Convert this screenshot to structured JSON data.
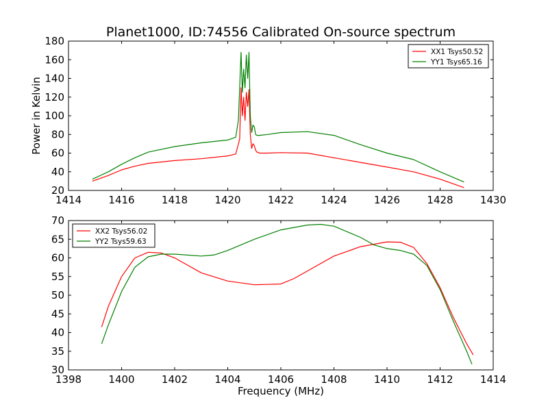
{
  "title": "Planet1000, ID:74556 Calibrated On-source spectrum",
  "chart_data": [
    {
      "type": "line",
      "ylabel": "Power in Kelvin",
      "xlim": [
        1414,
        1430
      ],
      "ylim": [
        20,
        180
      ],
      "xticks": [
        1414,
        1416,
        1418,
        1420,
        1422,
        1424,
        1426,
        1428,
        1430
      ],
      "yticks": [
        20,
        40,
        60,
        80,
        100,
        120,
        140,
        160,
        180
      ],
      "legend_position": "top-right",
      "series": [
        {
          "name": "XX1 Tsys50.52",
          "color": "#ff0000",
          "x": [
            1414.9,
            1415.5,
            1416.0,
            1416.5,
            1417.0,
            1418.0,
            1419.0,
            1420.0,
            1420.3,
            1420.45,
            1420.5,
            1420.55,
            1420.6,
            1420.65,
            1420.7,
            1420.75,
            1420.8,
            1420.85,
            1420.9,
            1420.95,
            1421.0,
            1421.05,
            1421.1,
            1421.2,
            1421.5,
            1422.0,
            1423.0,
            1424.0,
            1425.0,
            1426.0,
            1427.0,
            1428.0,
            1428.9
          ],
          "y": [
            30,
            36,
            42,
            46,
            49,
            52,
            54,
            57,
            59,
            75,
            130,
            100,
            120,
            95,
            125,
            110,
            128,
            80,
            65,
            70,
            68,
            63,
            61,
            60,
            60,
            60.5,
            60,
            55,
            50,
            45,
            40,
            32,
            23
          ]
        },
        {
          "name": "YY1 Tsys65.16",
          "color": "#008000",
          "x": [
            1414.9,
            1415.5,
            1416.0,
            1416.5,
            1417.0,
            1418.0,
            1419.0,
            1420.0,
            1420.3,
            1420.4,
            1420.5,
            1420.55,
            1420.6,
            1420.65,
            1420.7,
            1420.75,
            1420.8,
            1420.85,
            1420.9,
            1420.95,
            1421.0,
            1421.05,
            1421.1,
            1421.2,
            1421.5,
            1422.0,
            1423.0,
            1424.0,
            1425.0,
            1426.0,
            1427.0,
            1428.0,
            1428.9
          ],
          "y": [
            32,
            40,
            48,
            55,
            61,
            67,
            71,
            74,
            77,
            95,
            168,
            125,
            150,
            130,
            165,
            140,
            168,
            100,
            82,
            90,
            88,
            80,
            79,
            79,
            80,
            82,
            83,
            79,
            69,
            60,
            53,
            40,
            29
          ]
        }
      ]
    },
    {
      "type": "line",
      "xlabel": "Frequency (MHz)",
      "xlim": [
        1398,
        1414
      ],
      "ylim": [
        30,
        70
      ],
      "xticks": [
        1398,
        1400,
        1402,
        1404,
        1406,
        1408,
        1410,
        1412,
        1414
      ],
      "yticks": [
        30,
        35,
        40,
        45,
        50,
        55,
        60,
        65,
        70
      ],
      "legend_position": "top-left",
      "series": [
        {
          "name": "XX2 Tsys56.02",
          "color": "#ff0000",
          "x": [
            1399.25,
            1399.5,
            1400.0,
            1400.5,
            1401.0,
            1401.5,
            1402.0,
            1402.5,
            1403.0,
            1404.0,
            1405.0,
            1406.0,
            1406.5,
            1407.0,
            1408.0,
            1409.0,
            1410.0,
            1410.5,
            1411.0,
            1411.5,
            1412.0,
            1412.5,
            1413.0,
            1413.25
          ],
          "y": [
            41.5,
            47,
            55,
            60,
            61.5,
            61.3,
            60,
            58,
            56,
            53.8,
            52.8,
            53,
            54.5,
            56.5,
            60.5,
            63,
            64.3,
            64.2,
            62.8,
            58.5,
            52,
            44,
            37,
            34
          ]
        },
        {
          "name": "YY2 Tsys59.63",
          "color": "#008000",
          "x": [
            1399.25,
            1399.5,
            1400.0,
            1400.5,
            1401.0,
            1401.5,
            1402.0,
            1403.0,
            1403.5,
            1404.0,
            1405.0,
            1406.0,
            1407.0,
            1407.5,
            1408.0,
            1409.0,
            1409.5,
            1410.0,
            1410.5,
            1411.0,
            1411.5,
            1412.0,
            1412.5,
            1413.0,
            1413.2
          ],
          "y": [
            37,
            42,
            51,
            57.5,
            60.3,
            61,
            61,
            60.5,
            60.8,
            62,
            65,
            67.5,
            68.8,
            69,
            68.5,
            65.5,
            63.5,
            62.5,
            62,
            61,
            58,
            51.5,
            43,
            35,
            31.5
          ]
        }
      ]
    }
  ]
}
